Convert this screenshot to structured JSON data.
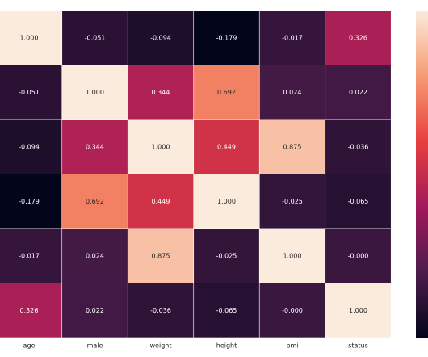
{
  "chart_data": {
    "type": "heatmap",
    "categories": [
      "age",
      "male",
      "weight",
      "height",
      "bmi",
      "status"
    ],
    "values": [
      [
        1.0,
        -0.051,
        -0.094,
        -0.179,
        -0.017,
        0.326
      ],
      [
        -0.051,
        1.0,
        0.344,
        0.692,
        0.024,
        0.022
      ],
      [
        -0.094,
        0.344,
        1.0,
        0.449,
        0.875,
        -0.036
      ],
      [
        -0.179,
        0.692,
        0.449,
        1.0,
        -0.025,
        -0.065
      ],
      [
        -0.017,
        0.024,
        0.875,
        -0.025,
        1.0,
        0
      ],
      [
        0.326,
        0.022,
        -0.036,
        -0.065,
        0,
        1.0
      ]
    ],
    "value_labels": [
      [
        "1.000",
        "-0.051",
        "-0.094",
        "-0.179",
        "-0.017",
        "0.326"
      ],
      [
        "-0.051",
        "1.000",
        "0.344",
        "0.692",
        "0.024",
        "0.022"
      ],
      [
        "-0.094",
        "0.344",
        "1.000",
        "0.449",
        "0.875",
        "-0.036"
      ],
      [
        "-0.179",
        "0.692",
        "0.449",
        "1.000",
        "-0.025",
        "-0.065"
      ],
      [
        "-0.017",
        "0.024",
        "0.875",
        "-0.025",
        "1.000",
        "-0.000"
      ],
      [
        "0.326",
        "0.022",
        "-0.036",
        "-0.065",
        "-0.000",
        "1.000"
      ]
    ]
  }
}
